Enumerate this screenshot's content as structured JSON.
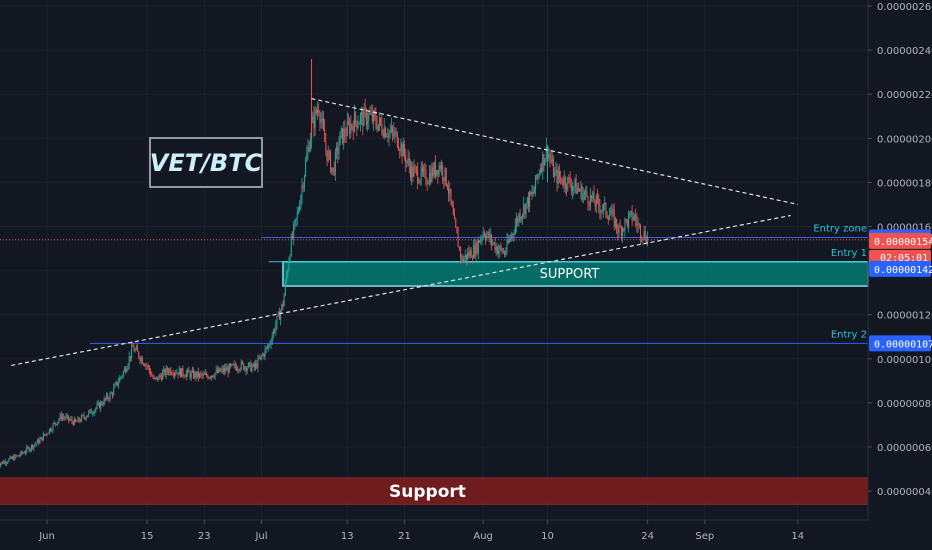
{
  "chart_data": {
    "type": "candlestick",
    "symbol_box": "VET/BTC",
    "y_axis": {
      "ticks": [
        "0.00000040",
        "0.00000060",
        "0.00000080",
        "0.00000100",
        "0.00000120",
        "0.00000140",
        "0.00000160",
        "0.00000180",
        "0.00000200",
        "0.00000220",
        "0.00000240",
        "0.00000260"
      ],
      "ylim": [
        3e-07,
        2.62e-06
      ]
    },
    "x_axis": {
      "ticks": [
        "Jun",
        "15",
        "23",
        "Jul",
        "13",
        "21",
        "Aug",
        "10",
        "24",
        "Sep",
        "14"
      ],
      "tick_dates": [
        "2019-06-01",
        "2019-06-15",
        "2019-06-23",
        "2019-07-01",
        "2019-07-13",
        "2019-07-21",
        "2019-08-01",
        "2019-08-10",
        "2019-08-24",
        "2019-09-01",
        "2019-09-14"
      ]
    },
    "candles": [
      [
        "2019-05-25",
        5.2e-07
      ],
      [
        "2019-05-28",
        5.6e-07
      ],
      [
        "2019-05-31",
        6.3e-07
      ],
      [
        "2019-06-03",
        7.4e-07
      ],
      [
        "2019-06-05",
        7.1e-07
      ],
      [
        "2019-06-08",
        7.8e-07
      ],
      [
        "2019-06-10",
        8.4e-07
      ],
      [
        "2019-06-12",
        9.6e-07
      ],
      [
        "2019-06-13",
        1.05e-06
      ],
      [
        "2019-06-15",
        9.7e-07
      ],
      [
        "2019-06-16",
        9e-07
      ],
      [
        "2019-06-18",
        9.5e-07
      ],
      [
        "2019-06-21",
        9.3e-07
      ],
      [
        "2019-06-23",
        9.2e-07
      ],
      [
        "2019-06-25",
        9.4e-07
      ],
      [
        "2019-06-28",
        9.7e-07
      ],
      [
        "2019-06-30",
        9.6e-07
      ],
      [
        "2019-07-02",
        1.06e-06
      ],
      [
        "2019-07-04",
        1.25e-06
      ],
      [
        "2019-07-05",
        1.5e-06
      ],
      [
        "2019-07-06",
        1.65e-06
      ],
      [
        "2019-07-08",
        2.05e-06
      ],
      [
        "2019-07-09",
        2.15e-06
      ],
      [
        "2019-07-10",
        1.95e-06
      ],
      [
        "2019-07-11",
        1.85e-06
      ],
      [
        "2019-07-12",
        2e-06
      ],
      [
        "2019-07-14",
        2.08e-06
      ],
      [
        "2019-07-16",
        2.1e-06
      ],
      [
        "2019-07-18",
        2.05e-06
      ],
      [
        "2019-07-20",
        2e-06
      ],
      [
        "2019-07-22",
        1.85e-06
      ],
      [
        "2019-07-24",
        1.82e-06
      ],
      [
        "2019-07-26",
        1.88e-06
      ],
      [
        "2019-07-27",
        1.8e-06
      ],
      [
        "2019-07-28",
        1.6e-06
      ],
      [
        "2019-07-29",
        1.45e-06
      ],
      [
        "2019-07-31",
        1.5e-06
      ],
      [
        "2019-08-01",
        1.58e-06
      ],
      [
        "2019-08-03",
        1.5e-06
      ],
      [
        "2019-08-04",
        1.48e-06
      ],
      [
        "2019-08-06",
        1.65e-06
      ],
      [
        "2019-08-08",
        1.75e-06
      ],
      [
        "2019-08-09",
        1.88e-06
      ],
      [
        "2019-08-10",
        1.95e-06
      ],
      [
        "2019-08-11",
        1.83e-06
      ],
      [
        "2019-08-13",
        1.8e-06
      ],
      [
        "2019-08-15",
        1.75e-06
      ],
      [
        "2019-08-17",
        1.7e-06
      ],
      [
        "2019-08-19",
        1.65e-06
      ],
      [
        "2019-08-20",
        1.58e-06
      ],
      [
        "2019-08-21",
        1.62e-06
      ],
      [
        "2019-08-22",
        1.65e-06
      ],
      [
        "2019-08-23",
        1.58e-06
      ],
      [
        "2019-08-24",
        1.55e-06
      ]
    ],
    "candle_columns": [
      "date",
      "close"
    ],
    "trendlines": [
      {
        "style": "dashed",
        "from": [
          "2019-07-08",
          2.18e-06
        ],
        "to": [
          "2019-09-14",
          1.7e-06
        ]
      },
      {
        "style": "dashed",
        "from": [
          "2019-05-27",
          9.7e-07
        ],
        "to": [
          "2019-09-13",
          1.65e-06
        ]
      }
    ],
    "levels": [
      {
        "label": "Entry zone",
        "value": 1.55e-06,
        "color": "#2962ff",
        "tag": "0.00000155",
        "from": "2019-07-01"
      },
      {
        "label": "Entry 1",
        "value": 1.44e-06,
        "color": "#26c6da",
        "from": "2019-07-02"
      },
      {
        "label": "Entry 2",
        "value": 1.07e-06,
        "color": "#2962ff",
        "tag": "0.00000107",
        "from": "2019-06-07"
      }
    ],
    "current_price": {
      "value": 1.54e-06,
      "tag": "0.00000154",
      "countdown": "02:05:01",
      "color": "#ef5350"
    },
    "secondary_tag": {
      "value": 1.42e-06,
      "tag": "0.00000142",
      "color": "#2962ff"
    },
    "zones": [
      {
        "label": "SUPPORT",
        "top": 1.44e-06,
        "bottom": 1.33e-06,
        "from": "2019-07-04",
        "color": "#00897b"
      },
      {
        "label": "Support",
        "top": 4.6e-07,
        "bottom": 3.4e-07,
        "from": "2019-05-25",
        "color": "#7f1d1d"
      }
    ]
  }
}
